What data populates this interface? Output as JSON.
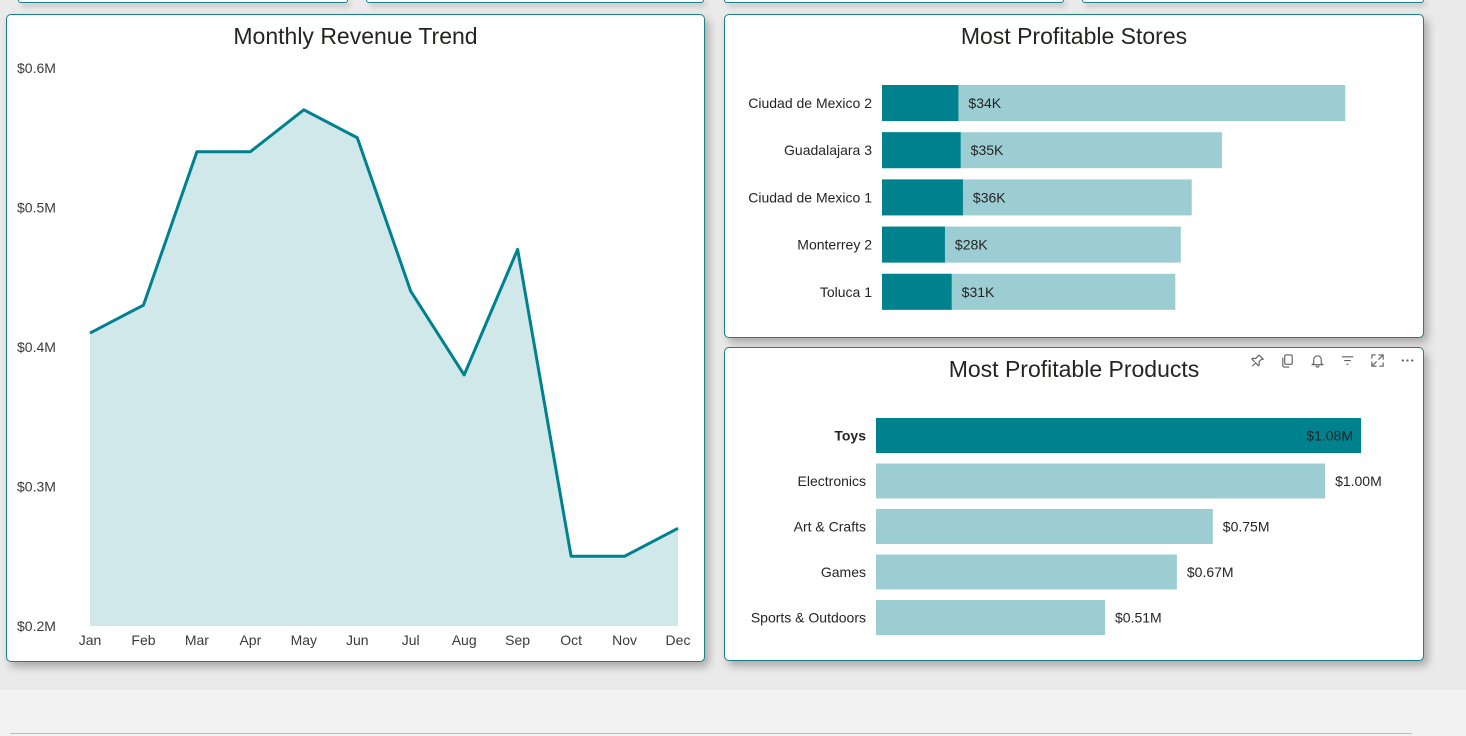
{
  "revenue_card": {
    "title": "Monthly Revenue Trend"
  },
  "stores_card": {
    "title": "Most Profitable Stores"
  },
  "products_card": {
    "title": "Most Profitable Products",
    "header_icons": [
      "pin-icon",
      "copy-icon",
      "bell-icon",
      "filter-icon",
      "focus-mode-icon",
      "more-options-icon"
    ]
  },
  "colors": {
    "accent": "#00818e",
    "light": "#9ccdd3",
    "area_fill": "#d1e8eb",
    "border": "#1b7f86"
  },
  "chart_data": [
    {
      "type": "area",
      "title": "Monthly Revenue Trend",
      "categories": [
        "Jan",
        "Feb",
        "Mar",
        "Apr",
        "May",
        "Jun",
        "Jul",
        "Aug",
        "Sep",
        "Oct",
        "Nov",
        "Dec"
      ],
      "values": [
        0.41,
        0.43,
        0.54,
        0.54,
        0.57,
        0.55,
        0.44,
        0.38,
        0.47,
        0.25,
        0.25,
        0.27
      ],
      "ylim": [
        0.2,
        0.6
      ],
      "yticks": [
        0.2,
        0.3,
        0.4,
        0.5,
        0.6
      ],
      "ytick_labels": [
        "$0.2M",
        "$0.3M",
        "$0.4M",
        "$0.5M",
        "$0.6M"
      ],
      "grid": false,
      "legend": "none"
    },
    {
      "type": "bar",
      "orientation": "horizontal",
      "title": "Most Profitable Stores",
      "categories": [
        "Ciudad de Mexico 2",
        "Guadalajara 3",
        "Ciudad de Mexico 1",
        "Monterrey 2",
        "Toluca 1"
      ],
      "series": [
        {
          "values": [
            34,
            35,
            36,
            28,
            31
          ],
          "labels": [
            "$34K",
            "$35K",
            "$36K",
            "$28K",
            "$31K"
          ]
        },
        {
          "values": [
            169,
            124,
            113,
            109,
            107
          ]
        }
      ],
      "xlim": [
        0,
        170
      ],
      "legend": "none"
    },
    {
      "type": "bar",
      "orientation": "horizontal",
      "title": "Most Profitable Products",
      "categories": [
        "Toys",
        "Electronics",
        "Art & Crafts",
        "Games",
        "Sports & Outdoors"
      ],
      "values": [
        1.08,
        1.0,
        0.75,
        0.67,
        0.51
      ],
      "value_labels": [
        "$1.08M",
        "$1.00M",
        "$0.75M",
        "$0.67M",
        "$0.51M"
      ],
      "highlighted": "Toys",
      "xlim": [
        0,
        1.1
      ],
      "legend": "none"
    }
  ]
}
